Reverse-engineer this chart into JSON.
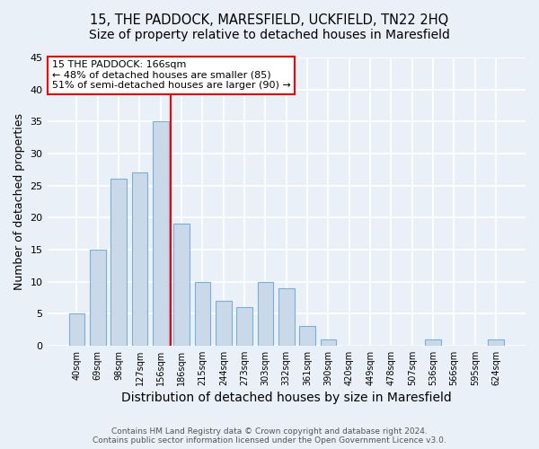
{
  "title": "15, THE PADDOCK, MARESFIELD, UCKFIELD, TN22 2HQ",
  "subtitle": "Size of property relative to detached houses in Maresfield",
  "xlabel": "Distribution of detached houses by size in Maresfield",
  "ylabel": "Number of detached properties",
  "bar_labels": [
    "40sqm",
    "69sqm",
    "98sqm",
    "127sqm",
    "156sqm",
    "186sqm",
    "215sqm",
    "244sqm",
    "273sqm",
    "303sqm",
    "332sqm",
    "361sqm",
    "390sqm",
    "420sqm",
    "449sqm",
    "478sqm",
    "507sqm",
    "536sqm",
    "566sqm",
    "595sqm",
    "624sqm"
  ],
  "bar_values": [
    5,
    15,
    26,
    27,
    35,
    19,
    10,
    7,
    6,
    10,
    9,
    3,
    1,
    0,
    0,
    0,
    0,
    1,
    0,
    0,
    1
  ],
  "bar_color": "#c9d9ea",
  "bar_edgecolor": "#7bafd4",
  "property_line_x": 4.5,
  "annotation_text": "15 THE PADDOCK: 166sqm\n← 48% of detached houses are smaller (85)\n51% of semi-detached houses are larger (90) →",
  "annotation_box_color": "white",
  "annotation_box_edgecolor": "red",
  "vline_color": "red",
  "ylim": [
    0,
    45
  ],
  "yticks": [
    0,
    5,
    10,
    15,
    20,
    25,
    30,
    35,
    40,
    45
  ],
  "background_color": "#eaf0f8",
  "plot_bg_color": "#eaf0f8",
  "footer_line1": "Contains HM Land Registry data © Crown copyright and database right 2024.",
  "footer_line2": "Contains public sector information licensed under the Open Government Licence v3.0.",
  "grid_color": "white",
  "title_fontsize": 10.5,
  "axis_label_fontsize": 9,
  "bar_width": 0.75
}
